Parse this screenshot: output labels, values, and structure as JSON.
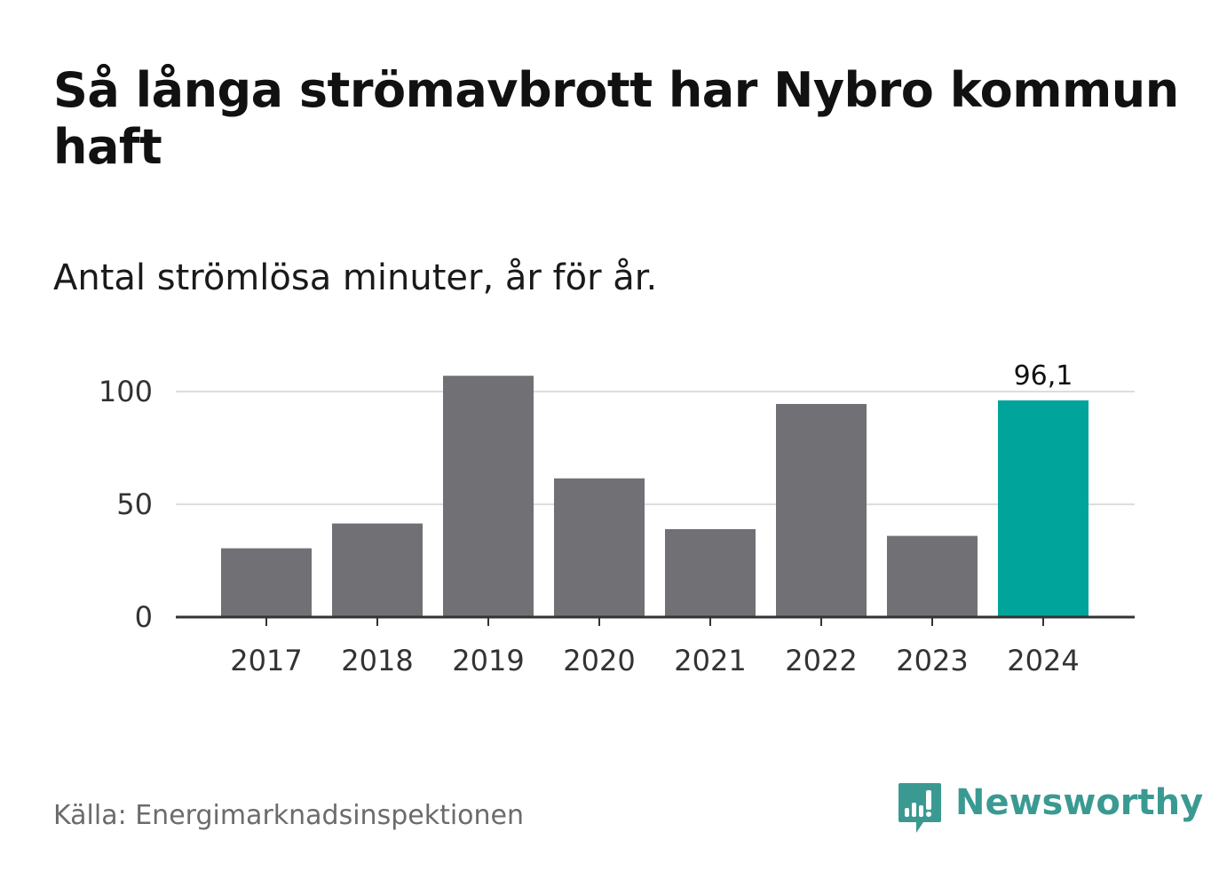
{
  "title": "Så långa strömavbrott har Nybro kommun haft",
  "subtitle": "Antal strömlösa minuter, år för år.",
  "source": "Källa: Energimarknadsinspektionen",
  "brand": "Newsworthy",
  "colors": {
    "bar_default": "#717075",
    "bar_highlight": "#00a49a",
    "grid": "#dddddd",
    "axis": "#333333",
    "brand": "#3a9a92"
  },
  "chart_data": {
    "type": "bar",
    "title": "Så långa strömavbrott har Nybro kommun haft",
    "subtitle": "Antal strömlösa minuter, år för år.",
    "xlabel": "",
    "ylabel": "",
    "categories": [
      "2017",
      "2018",
      "2019",
      "2020",
      "2021",
      "2022",
      "2023",
      "2024"
    ],
    "values": [
      30.5,
      41.5,
      107,
      61.5,
      39,
      94.5,
      36,
      96.1
    ],
    "highlight_index": 7,
    "highlight_label": "96,1",
    "ylim": [
      0,
      100
    ],
    "yticks": [
      0,
      50,
      100
    ],
    "grid": true
  }
}
